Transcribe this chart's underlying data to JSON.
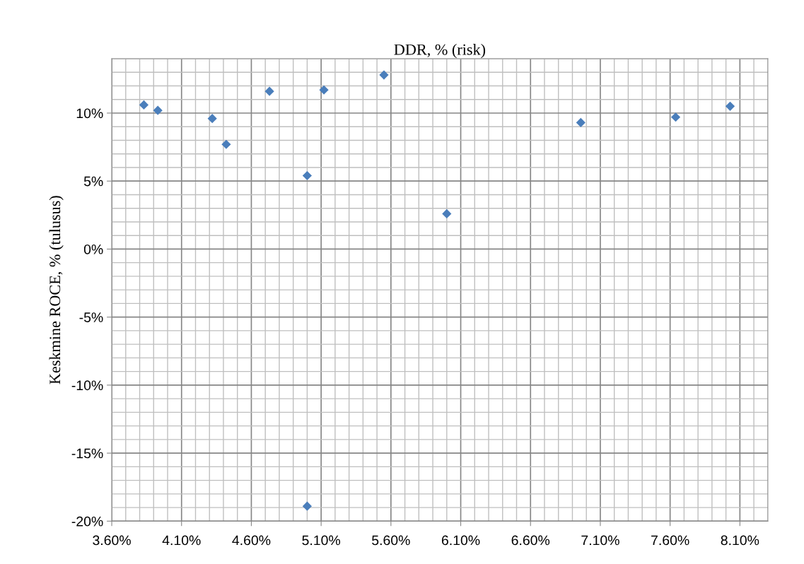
{
  "chart_data": {
    "type": "scatter",
    "title": "DDR, % (risk)",
    "ylabel": "Keskmine ROCE, % (tulusus)",
    "x": [
      3.83,
      3.93,
      4.32,
      4.42,
      4.73,
      5.0,
      5.12,
      5.55,
      6.0,
      6.96,
      7.64,
      8.03,
      5.0
    ],
    "values": [
      10.6,
      10.2,
      9.6,
      7.7,
      11.6,
      5.4,
      11.7,
      12.8,
      2.6,
      9.3,
      9.7,
      10.5,
      -18.9
    ],
    "color": "#4a7ebb",
    "marker": "diamond",
    "grid": true,
    "legend": false,
    "xlim": [
      3.6,
      8.3
    ],
    "xticks": [
      {
        "value": 3.6,
        "label": "3.60%"
      },
      {
        "value": 3.7,
        "label": null
      },
      {
        "value": 3.8,
        "label": null
      },
      {
        "value": 3.9,
        "label": null
      },
      {
        "value": 4.0,
        "label": null
      },
      {
        "value": 4.1,
        "label": "4.10%"
      },
      {
        "value": 4.2,
        "label": null
      },
      {
        "value": 4.3,
        "label": null
      },
      {
        "value": 4.4,
        "label": null
      },
      {
        "value": 4.5,
        "label": null
      },
      {
        "value": 4.6,
        "label": "4.60%"
      },
      {
        "value": 4.7,
        "label": null
      },
      {
        "value": 4.8,
        "label": null
      },
      {
        "value": 4.9,
        "label": null
      },
      {
        "value": 5.0,
        "label": null
      },
      {
        "value": 5.1,
        "label": "5.10%"
      },
      {
        "value": 5.2,
        "label": null
      },
      {
        "value": 5.3,
        "label": null
      },
      {
        "value": 5.4,
        "label": null
      },
      {
        "value": 5.5,
        "label": null
      },
      {
        "value": 5.6,
        "label": "5.60%"
      },
      {
        "value": 5.7,
        "label": null
      },
      {
        "value": 5.8,
        "label": null
      },
      {
        "value": 5.9,
        "label": null
      },
      {
        "value": 6.0,
        "label": null
      },
      {
        "value": 6.1,
        "label": "6.10%"
      },
      {
        "value": 6.2,
        "label": null
      },
      {
        "value": 6.3,
        "label": null
      },
      {
        "value": 6.4,
        "label": null
      },
      {
        "value": 6.5,
        "label": null
      },
      {
        "value": 6.6,
        "label": "6.60%"
      },
      {
        "value": 6.7,
        "label": null
      },
      {
        "value": 6.8,
        "label": null
      },
      {
        "value": 6.9,
        "label": null
      },
      {
        "value": 7.0,
        "label": null
      },
      {
        "value": 7.1,
        "label": "7.10%"
      },
      {
        "value": 7.2,
        "label": null
      },
      {
        "value": 7.3,
        "label": null
      },
      {
        "value": 7.4,
        "label": null
      },
      {
        "value": 7.5,
        "label": null
      },
      {
        "value": 7.6,
        "label": "7.60%"
      },
      {
        "value": 7.7,
        "label": null
      },
      {
        "value": 7.8,
        "label": null
      },
      {
        "value": 7.9,
        "label": null
      },
      {
        "value": 8.0,
        "label": null
      },
      {
        "value": 8.1,
        "label": "8.10%"
      },
      {
        "value": 8.2,
        "label": null
      }
    ],
    "ylim": [
      -20,
      14
    ],
    "yticks": [
      {
        "value": -20,
        "label": "-20%"
      },
      {
        "value": -19,
        "label": null
      },
      {
        "value": -18,
        "label": null
      },
      {
        "value": -17,
        "label": null
      },
      {
        "value": -16,
        "label": null
      },
      {
        "value": -15,
        "label": "-15%"
      },
      {
        "value": -14,
        "label": null
      },
      {
        "value": -13,
        "label": null
      },
      {
        "value": -12,
        "label": null
      },
      {
        "value": -11,
        "label": null
      },
      {
        "value": -10,
        "label": "-10%"
      },
      {
        "value": -9,
        "label": null
      },
      {
        "value": -8,
        "label": null
      },
      {
        "value": -7,
        "label": null
      },
      {
        "value": -6,
        "label": null
      },
      {
        "value": -5,
        "label": "-5%"
      },
      {
        "value": -4,
        "label": null
      },
      {
        "value": -3,
        "label": null
      },
      {
        "value": -2,
        "label": null
      },
      {
        "value": -1,
        "label": null
      },
      {
        "value": 0,
        "label": "0%"
      },
      {
        "value": 1,
        "label": null
      },
      {
        "value": 2,
        "label": null
      },
      {
        "value": 3,
        "label": null
      },
      {
        "value": 4,
        "label": null
      },
      {
        "value": 5,
        "label": "5%"
      },
      {
        "value": 6,
        "label": null
      },
      {
        "value": 7,
        "label": null
      },
      {
        "value": 8,
        "label": null
      },
      {
        "value": 9,
        "label": null
      },
      {
        "value": 10,
        "label": "10%"
      },
      {
        "value": 11,
        "label": null
      },
      {
        "value": 12,
        "label": null
      },
      {
        "value": 13,
        "label": null
      },
      {
        "value": 14,
        "label": null
      }
    ]
  }
}
